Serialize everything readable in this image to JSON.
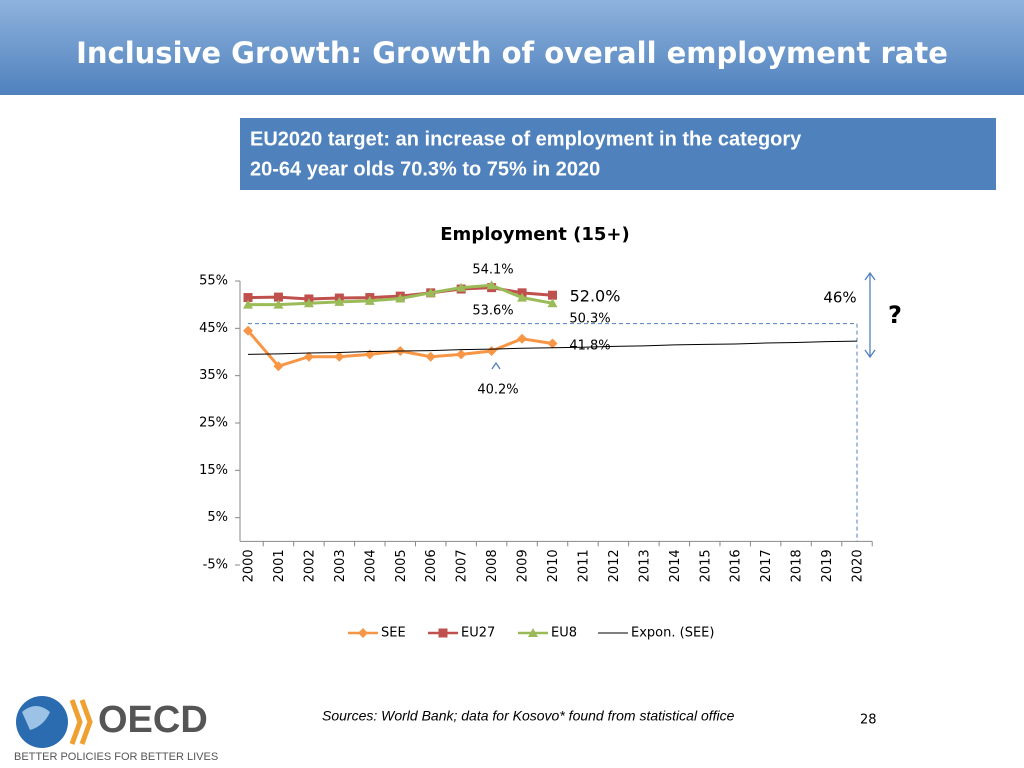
{
  "slide": {
    "title": "Inclusive Growth: Growth of overall employment rate",
    "box_text": [
      "EU2020 target: an increase of employment in the category",
      "20-64 year olds 70.3% to 75% in 2020"
    ],
    "logo": "OECD",
    "tagline": "BETTER POLICIES FOR BETTER LIVES",
    "sources": "Sources: World Bank;  data for Kosovo* found from statistical office",
    "page_number": "28"
  },
  "chart_data": {
    "type": "line",
    "title": "Employment (15+)",
    "categories": [
      "2000",
      "2001",
      "2002",
      "2003",
      "2004",
      "2005",
      "2006",
      "2007",
      "2008",
      "2009",
      "2010",
      "2011",
      "2012",
      "2013",
      "2014",
      "2015",
      "2016",
      "2017",
      "2018",
      "2019",
      "2020"
    ],
    "series": [
      {
        "name": "SEE",
        "color": "#f79646",
        "marker": "diamond",
        "values": [
          44.5,
          37,
          39,
          39,
          39.5,
          40.2,
          39,
          39.5,
          40.2,
          42.8,
          41.8,
          null,
          null,
          null,
          null,
          null,
          null,
          null,
          null,
          null,
          null
        ]
      },
      {
        "name": "EU27",
        "color": "#c0504d",
        "marker": "square",
        "values": [
          51.5,
          51.6,
          51.2,
          51.4,
          51.5,
          51.8,
          52.5,
          53.3,
          53.6,
          52.5,
          52.0,
          null,
          null,
          null,
          null,
          null,
          null,
          null,
          null,
          null,
          null
        ]
      },
      {
        "name": "EU8",
        "color": "#9bbb59",
        "marker": "triangle",
        "values": [
          50,
          50,
          50.3,
          50.6,
          50.8,
          51.3,
          52.5,
          53.6,
          54.1,
          51.5,
          50.3,
          null,
          null,
          null,
          null,
          null,
          null,
          null,
          null,
          null,
          null
        ]
      },
      {
        "name": "Expon. (SEE)",
        "color": "#000000",
        "marker": "none",
        "values": [
          39.5,
          39.6,
          39.8,
          39.9,
          40.1,
          40.2,
          40.3,
          40.5,
          40.6,
          40.8,
          40.9,
          41.0,
          41.2,
          41.3,
          41.5,
          41.6,
          41.7,
          41.9,
          42.0,
          42.2,
          42.3
        ]
      }
    ],
    "ylim": [
      -5,
      55
    ],
    "yticks": [
      {
        "value": -5,
        "label": "-5%"
      },
      {
        "value": 5,
        "label": "5%"
      },
      {
        "value": 15,
        "label": "15%"
      },
      {
        "value": 25,
        "label": "25%"
      },
      {
        "value": 35,
        "label": "35%"
      },
      {
        "value": 45,
        "label": "45%"
      },
      {
        "value": 55,
        "label": "55%"
      }
    ],
    "target": {
      "value": 46,
      "label": "46%"
    },
    "annotations": [
      "54.1%",
      "53.6%",
      "52.0%",
      "50.3%",
      "41.8%",
      "40.2%",
      "?"
    ],
    "legend": "bottom"
  }
}
